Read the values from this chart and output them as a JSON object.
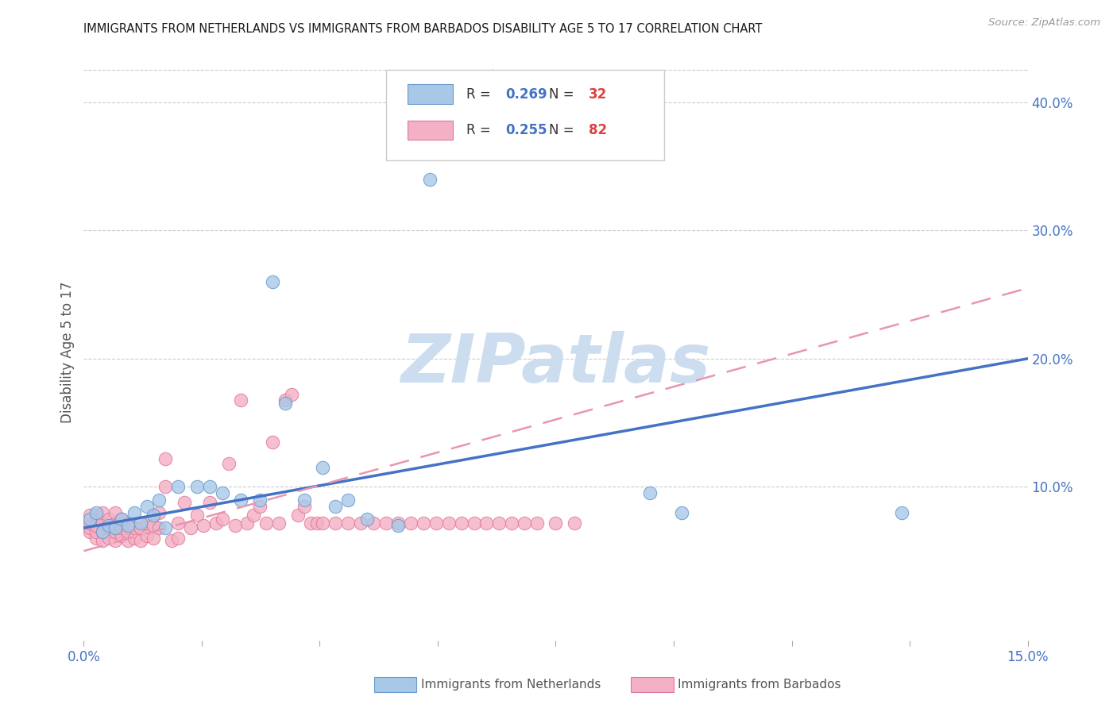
{
  "title": "IMMIGRANTS FROM NETHERLANDS VS IMMIGRANTS FROM BARBADOS DISABILITY AGE 5 TO 17 CORRELATION CHART",
  "source": "Source: ZipAtlas.com",
  "ylabel": "Disability Age 5 to 17",
  "x_min": 0.0,
  "x_max": 0.15,
  "y_min": -0.02,
  "y_max": 0.43,
  "y_ticks_right": [
    0.1,
    0.2,
    0.3,
    0.4
  ],
  "y_tick_labels_right": [
    "10.0%",
    "20.0%",
    "30.0%",
    "40.0%"
  ],
  "netherlands_fill": "#a8c8e8",
  "netherlands_edge": "#6699cc",
  "barbados_fill": "#f4b0c4",
  "barbados_edge": "#e07898",
  "trend_nl_color": "#4472c4",
  "trend_bb_color": "#e896b0",
  "R_nl": 0.269,
  "N_nl": 32,
  "R_bb": 0.255,
  "N_bb": 82,
  "watermark": "ZIPatlas",
  "watermark_color": "#ccddf0",
  "legend_nl": "Immigrants from Netherlands",
  "legend_bb": "Immigrants from Barbados",
  "nl_x": [
    0.001,
    0.002,
    0.003,
    0.004,
    0.005,
    0.006,
    0.007,
    0.008,
    0.009,
    0.01,
    0.011,
    0.012,
    0.013,
    0.015,
    0.018,
    0.02,
    0.022,
    0.025,
    0.028,
    0.03,
    0.032,
    0.035,
    0.038,
    0.04,
    0.042,
    0.045,
    0.05,
    0.055,
    0.065,
    0.09,
    0.095,
    0.13
  ],
  "nl_y": [
    0.075,
    0.08,
    0.065,
    0.07,
    0.068,
    0.075,
    0.07,
    0.08,
    0.072,
    0.085,
    0.078,
    0.09,
    0.068,
    0.1,
    0.1,
    0.1,
    0.095,
    0.09,
    0.09,
    0.26,
    0.165,
    0.09,
    0.115,
    0.085,
    0.09,
    0.075,
    0.07,
    0.34,
    0.42,
    0.095,
    0.08,
    0.08
  ],
  "bb_x": [
    0.001,
    0.001,
    0.001,
    0.001,
    0.002,
    0.002,
    0.002,
    0.002,
    0.003,
    0.003,
    0.003,
    0.003,
    0.004,
    0.004,
    0.004,
    0.005,
    0.005,
    0.005,
    0.005,
    0.006,
    0.006,
    0.006,
    0.007,
    0.007,
    0.007,
    0.008,
    0.008,
    0.009,
    0.009,
    0.01,
    0.01,
    0.011,
    0.011,
    0.012,
    0.012,
    0.013,
    0.013,
    0.014,
    0.015,
    0.015,
    0.016,
    0.017,
    0.018,
    0.019,
    0.02,
    0.021,
    0.022,
    0.023,
    0.024,
    0.025,
    0.026,
    0.027,
    0.028,
    0.029,
    0.03,
    0.031,
    0.032,
    0.033,
    0.034,
    0.035,
    0.036,
    0.037,
    0.038,
    0.04,
    0.042,
    0.044,
    0.046,
    0.048,
    0.05,
    0.052,
    0.054,
    0.056,
    0.058,
    0.06,
    0.062,
    0.064,
    0.066,
    0.068,
    0.07,
    0.072,
    0.075,
    0.078
  ],
  "bb_y": [
    0.065,
    0.068,
    0.072,
    0.078,
    0.06,
    0.065,
    0.07,
    0.078,
    0.058,
    0.065,
    0.072,
    0.08,
    0.06,
    0.068,
    0.075,
    0.058,
    0.065,
    0.072,
    0.08,
    0.062,
    0.068,
    0.075,
    0.058,
    0.065,
    0.072,
    0.06,
    0.068,
    0.058,
    0.068,
    0.062,
    0.072,
    0.06,
    0.07,
    0.068,
    0.08,
    0.1,
    0.122,
    0.058,
    0.06,
    0.072,
    0.088,
    0.068,
    0.078,
    0.07,
    0.088,
    0.072,
    0.075,
    0.118,
    0.07,
    0.168,
    0.072,
    0.078,
    0.085,
    0.072,
    0.135,
    0.072,
    0.168,
    0.172,
    0.078,
    0.085,
    0.072,
    0.072,
    0.072,
    0.072,
    0.072,
    0.072,
    0.072,
    0.072,
    0.072,
    0.072,
    0.072,
    0.072,
    0.072,
    0.072,
    0.072,
    0.072,
    0.072,
    0.072,
    0.072,
    0.072,
    0.072,
    0.072
  ],
  "trend_nl_x0": 0.0,
  "trend_nl_y0": 0.068,
  "trend_nl_x1": 0.15,
  "trend_nl_y1": 0.2,
  "trend_bb_x0": 0.0,
  "trend_bb_y0": 0.05,
  "trend_bb_x1": 0.15,
  "trend_bb_y1": 0.255
}
